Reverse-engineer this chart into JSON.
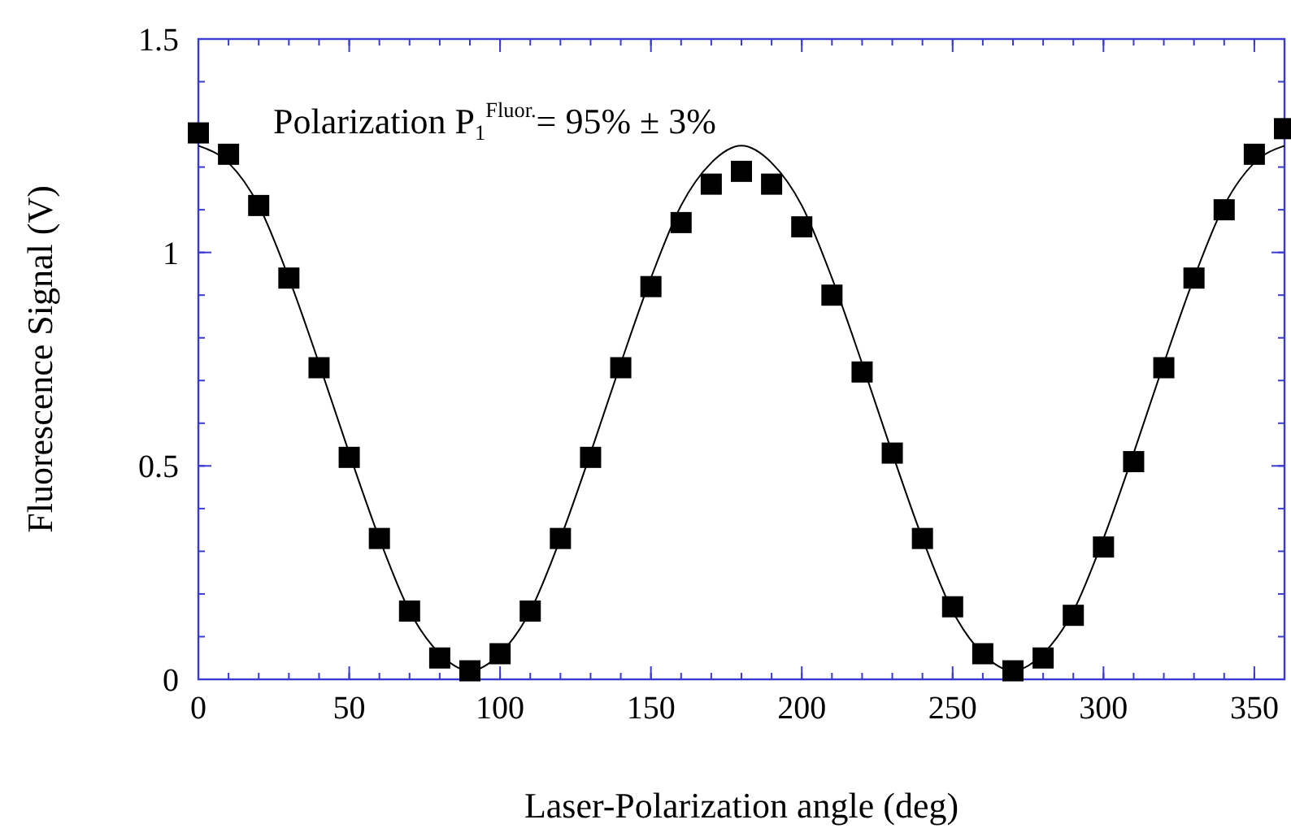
{
  "chart_data": {
    "type": "scatter",
    "xlabel": "Laser-Polarization angle (deg)",
    "ylabel": "Fluorescence Signal (V)",
    "annotations": [
      "Polarization P$_{1}$$^{Fluor.}$= 95% ± 3%"
    ],
    "xlim": [
      0,
      360
    ],
    "xticks": [
      0,
      50,
      100,
      150,
      200,
      250,
      300,
      350
    ],
    "ylim": [
      0,
      1.5
    ],
    "yticks": [
      0,
      0.5,
      1,
      1.5
    ],
    "grid": false,
    "series": [
      {
        "color": "#000000",
        "marker": "square",
        "x": [
          0,
          10,
          20,
          30,
          40,
          50,
          60,
          70,
          80,
          90,
          100,
          110,
          120,
          130,
          140,
          150,
          160,
          170,
          180,
          190,
          200,
          210,
          220,
          230,
          240,
          250,
          260,
          270,
          280,
          290,
          300,
          310,
          320,
          330,
          340,
          350,
          360
        ],
        "values": [
          1.28,
          1.23,
          1.11,
          0.94,
          0.73,
          0.52,
          0.33,
          0.16,
          0.05,
          0.02,
          0.06,
          0.16,
          0.33,
          0.52,
          0.73,
          0.92,
          1.07,
          1.16,
          1.19,
          1.16,
          1.06,
          0.9,
          0.72,
          0.53,
          0.33,
          0.17,
          0.06,
          0.02,
          0.05,
          0.15,
          0.31,
          0.51,
          0.73,
          0.94,
          1.1,
          1.23,
          1.29
        ]
      },
      {
        "type": "line",
        "color": "#000000",
        "marker": "none",
        "x": [
          0,
          10,
          20,
          30,
          40,
          50,
          60,
          70,
          80,
          90,
          100,
          110,
          120,
          130,
          140,
          150,
          160,
          170,
          180,
          190,
          200,
          210,
          220,
          230,
          240,
          250,
          260,
          270,
          280,
          290,
          300,
          310,
          320,
          330,
          340,
          350,
          360
        ],
        "values": [
          1.25,
          1.21,
          1.11,
          0.94,
          0.74,
          0.53,
          0.33,
          0.16,
          0.06,
          0.02,
          0.06,
          0.16,
          0.33,
          0.53,
          0.74,
          0.94,
          1.11,
          1.21,
          1.25,
          1.21,
          1.11,
          0.94,
          0.74,
          0.53,
          0.33,
          0.16,
          0.06,
          0.02,
          0.06,
          0.16,
          0.33,
          0.53,
          0.74,
          0.94,
          1.11,
          1.21,
          1.25
        ]
      }
    ]
  }
}
